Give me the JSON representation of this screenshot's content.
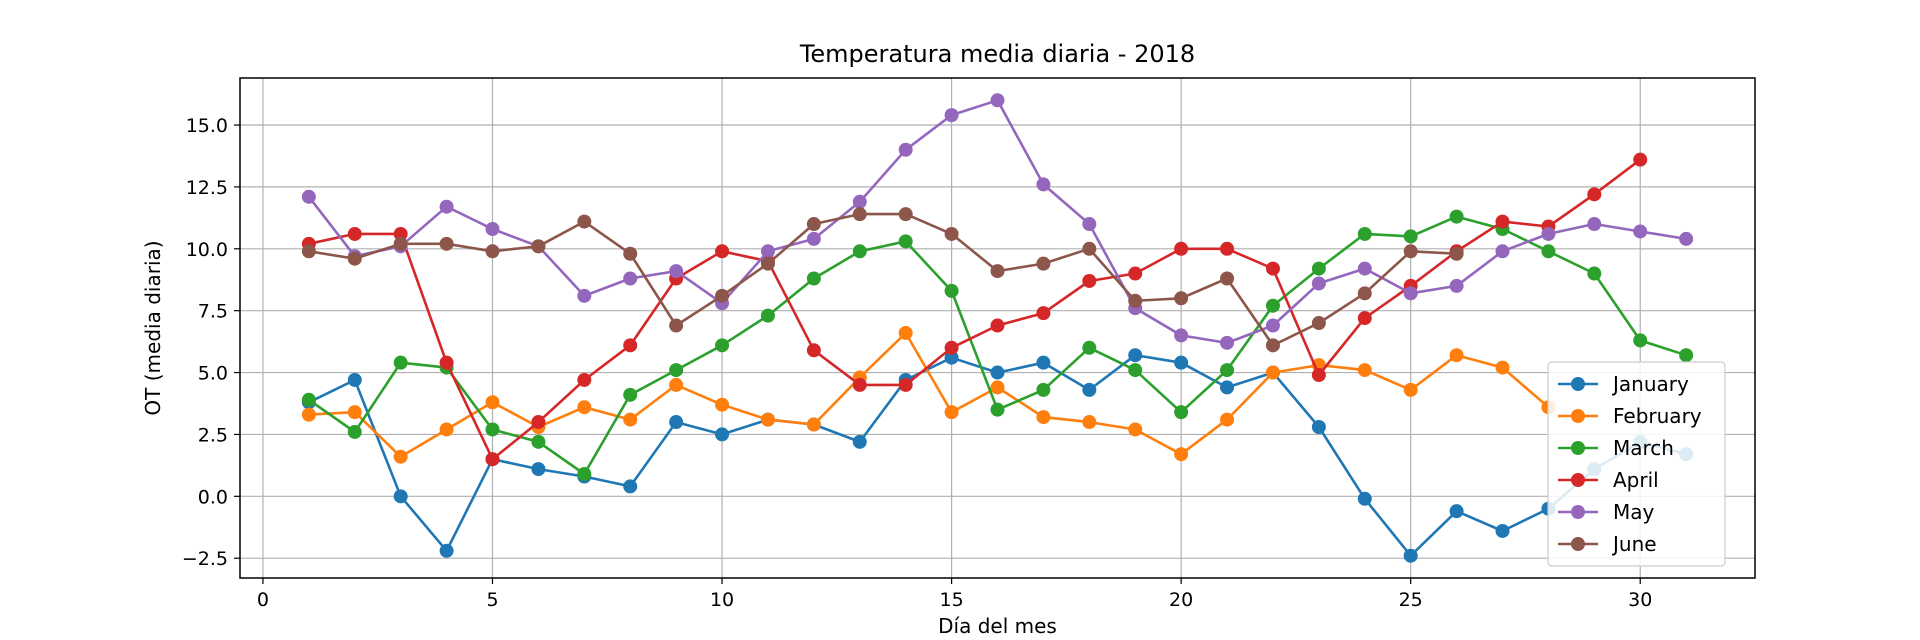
{
  "chart_data": {
    "type": "line",
    "title": "Temperatura media diaria - 2018",
    "xlabel": "Día del mes",
    "ylabel": "OT (media diaria)",
    "xlim": [
      -0.5,
      32.5
    ],
    "ylim": [
      -3.3,
      16.9
    ],
    "xticks": [
      0,
      5,
      10,
      15,
      20,
      25,
      30
    ],
    "xtick_labels": [
      "0",
      "5",
      "10",
      "15",
      "20",
      "25",
      "30"
    ],
    "yticks": [
      -2.5,
      0.0,
      2.5,
      5.0,
      7.5,
      10.0,
      12.5,
      15.0
    ],
    "ytick_labels": [
      "−2.5",
      "0.0",
      "2.5",
      "5.0",
      "7.5",
      "10.0",
      "12.5",
      "15.0"
    ],
    "grid": true,
    "legend_position": "lower-right",
    "series": [
      {
        "name": "January",
        "color": "#1f77b4",
        "x": [
          1,
          2,
          3,
          4,
          5,
          6,
          7,
          8,
          9,
          10,
          11,
          12,
          13,
          14,
          15,
          16,
          17,
          18,
          19,
          20,
          21,
          22,
          23,
          24,
          25,
          26,
          27,
          28,
          29,
          30,
          31
        ],
        "values": [
          3.8,
          4.7,
          0.0,
          -2.2,
          1.5,
          1.1,
          0.8,
          0.4,
          3.0,
          2.5,
          3.1,
          2.9,
          2.2,
          4.7,
          5.6,
          5.0,
          5.4,
          4.3,
          5.7,
          5.4,
          4.4,
          5.0,
          2.8,
          -0.1,
          -2.4,
          -0.6,
          -1.4,
          -0.5,
          1.1,
          2.2,
          1.7
        ]
      },
      {
        "name": "February",
        "color": "#ff7f0e",
        "x": [
          1,
          2,
          3,
          4,
          5,
          6,
          7,
          8,
          9,
          10,
          11,
          12,
          13,
          14,
          15,
          16,
          17,
          18,
          19,
          20,
          21,
          22,
          23,
          24,
          25,
          26,
          27,
          28
        ],
        "values": [
          3.3,
          3.4,
          1.6,
          2.7,
          3.8,
          2.8,
          3.6,
          3.1,
          4.5,
          3.7,
          3.1,
          2.9,
          4.8,
          6.6,
          3.4,
          4.4,
          3.2,
          3.0,
          2.7,
          1.7,
          3.1,
          5.0,
          5.3,
          5.1,
          4.3,
          5.7,
          5.2,
          3.6
        ]
      },
      {
        "name": "March",
        "color": "#2ca02c",
        "x": [
          1,
          2,
          3,
          4,
          5,
          6,
          7,
          8,
          9,
          10,
          11,
          12,
          13,
          14,
          15,
          16,
          17,
          18,
          19,
          20,
          21,
          22,
          23,
          24,
          25,
          26,
          27,
          28,
          29,
          30,
          31
        ],
        "values": [
          3.9,
          2.6,
          5.4,
          5.2,
          2.7,
          2.2,
          0.9,
          4.1,
          5.1,
          6.1,
          7.3,
          8.8,
          9.9,
          10.3,
          8.3,
          3.5,
          4.3,
          6.0,
          5.1,
          3.4,
          5.1,
          7.7,
          9.2,
          10.6,
          10.5,
          11.3,
          10.8,
          9.9,
          9.0,
          6.3,
          5.7
        ]
      },
      {
        "name": "April",
        "color": "#d62728",
        "x": [
          1,
          2,
          3,
          4,
          5,
          6,
          7,
          8,
          9,
          10,
          11,
          12,
          13,
          14,
          15,
          16,
          17,
          18,
          19,
          20,
          21,
          22,
          23,
          24,
          25,
          26,
          27,
          28,
          29,
          30
        ],
        "values": [
          10.2,
          10.6,
          10.6,
          5.4,
          1.5,
          3.0,
          4.7,
          6.1,
          8.8,
          9.9,
          9.5,
          5.9,
          4.5,
          4.5,
          6.0,
          6.9,
          7.4,
          8.7,
          9.0,
          10.0,
          10.0,
          9.2,
          4.9,
          7.2,
          8.5,
          9.9,
          11.1,
          10.9,
          12.2,
          13.6
        ]
      },
      {
        "name": "May",
        "color": "#9467bd",
        "x": [
          1,
          2,
          3,
          4,
          5,
          6,
          7,
          8,
          9,
          10,
          11,
          12,
          13,
          14,
          15,
          16,
          17,
          18,
          19,
          20,
          21,
          22,
          23,
          24,
          25,
          26,
          27,
          28,
          29,
          30,
          31
        ],
        "values": [
          12.1,
          9.7,
          10.1,
          11.7,
          10.8,
          10.1,
          8.1,
          8.8,
          9.1,
          7.8,
          9.9,
          10.4,
          11.9,
          14.0,
          15.4,
          16.0,
          12.6,
          11.0,
          7.6,
          6.5,
          6.2,
          6.9,
          8.6,
          9.2,
          8.2,
          8.5,
          9.9,
          10.6,
          11.0,
          10.7,
          10.4
        ]
      },
      {
        "name": "June",
        "color": "#8c564b",
        "x": [
          1,
          2,
          3,
          4,
          5,
          6,
          7,
          8,
          9,
          10,
          11,
          12,
          13,
          14,
          15,
          16,
          17,
          18,
          19,
          20,
          21,
          22,
          23,
          24,
          25,
          26
        ],
        "values": [
          9.9,
          9.6,
          10.2,
          10.2,
          9.9,
          10.1,
          11.1,
          9.8,
          6.9,
          8.1,
          9.4,
          11.0,
          11.4,
          11.4,
          10.6,
          9.1,
          9.4,
          10.0,
          7.9,
          8.0,
          8.8,
          6.1,
          7.0,
          8.2,
          9.9,
          9.8
        ]
      }
    ]
  }
}
